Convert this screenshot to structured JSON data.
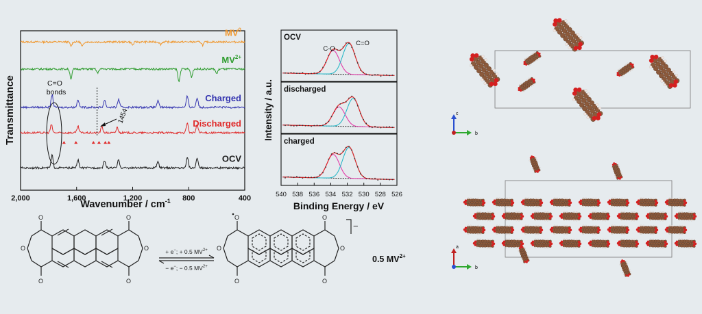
{
  "chart_data": [
    {
      "type": "line",
      "panel": "ftir",
      "ylabel": "Transmittance",
      "xlabel": "Wavenumber / cm",
      "xlabel_sup": "-1",
      "xlim": [
        2000,
        400
      ],
      "x_reversed": true,
      "xticks": [
        2000,
        1600,
        1200,
        800,
        400
      ],
      "xtick_labels": [
        "2,000",
        "1,600",
        "1,200",
        "800",
        "400"
      ],
      "series": [
        {
          "name": "MV",
          "sup": "0",
          "color": "#f0962b",
          "offset": 0.93,
          "features": [
            [
              1640,
              -0.025
            ],
            [
              1560,
              -0.03
            ],
            [
              1200,
              -0.02
            ],
            [
              1000,
              -0.015
            ],
            [
              700,
              -0.02
            ]
          ]
        },
        {
          "name": "MV",
          "sup": "2+",
          "color": "#2e9c2e",
          "offset": 0.76,
          "features": [
            [
              1640,
              -0.06
            ],
            [
              1450,
              -0.025
            ],
            [
              870,
              -0.08
            ],
            [
              780,
              -0.05
            ],
            [
              600,
              -0.03
            ]
          ]
        },
        {
          "name": "Charged",
          "color": "#3535b0",
          "offset": 0.52,
          "features": [
            [
              1775,
              0.08
            ],
            [
              1590,
              0.05
            ],
            [
              1400,
              0.045
            ],
            [
              1300,
              0.05
            ],
            [
              1020,
              0.04
            ],
            [
              810,
              0.07
            ],
            [
              740,
              0.06
            ]
          ]
        },
        {
          "name": "Discharged",
          "color": "#e02a2a",
          "offset": 0.36,
          "features": [
            [
              1780,
              0.05
            ],
            [
              1590,
              0.04
            ],
            [
              1420,
              0.04
            ],
            [
              1310,
              0.035
            ],
            [
              810,
              0.06
            ],
            [
              740,
              0.05
            ]
          ]
        },
        {
          "name": "OCV",
          "color": "#1a1a1a",
          "offset": 0.14,
          "features": [
            [
              1775,
              0.08
            ],
            [
              1590,
              0.05
            ],
            [
              1400,
              0.045
            ],
            [
              1300,
              0.05
            ],
            [
              1020,
              0.04
            ],
            [
              810,
              0.07
            ],
            [
              740,
              0.06
            ]
          ]
        }
      ],
      "annotations": {
        "bonds_label_1": "C=O",
        "bonds_label_2": "bonds",
        "peak_label": "1454",
        "peak_position": 1454,
        "triangle_positions": [
          1690,
          1605,
          1480,
          1440,
          1395,
          1370
        ]
      }
    },
    {
      "type": "line",
      "panel": "xps",
      "ylabel": "Intensity / a.u.",
      "xlabel": "Binding Energy / eV",
      "xlim": [
        540,
        526
      ],
      "x_reversed": true,
      "xticks": [
        540,
        538,
        536,
        534,
        532,
        530,
        528,
        526
      ],
      "subpanels": [
        {
          "label": "OCV",
          "labels": [
            "C-O",
            "C=O"
          ],
          "peaks": [
            {
              "name": "C-O",
              "center": 533.7,
              "height": 0.55,
              "color": "#e23ba8"
            },
            {
              "name": "C=O",
              "center": 531.8,
              "height": 0.72,
              "color": "#2ab8c8"
            }
          ]
        },
        {
          "label": "discharged",
          "peaks": [
            {
              "name": "C-O",
              "center": 533.0,
              "height": 0.45,
              "color": "#e23ba8"
            },
            {
              "name": "C=O",
              "center": 531.3,
              "height": 0.65,
              "color": "#2ab8c8"
            }
          ]
        },
        {
          "label": "charged",
          "peaks": [
            {
              "name": "C-O",
              "center": 533.7,
              "height": 0.55,
              "color": "#e23ba8"
            },
            {
              "name": "C=O",
              "center": 531.8,
              "height": 0.72,
              "color": "#2ab8c8"
            }
          ]
        }
      ],
      "envelope_color": "#e02a2a",
      "background_color": "#1a1a1a"
    }
  ],
  "scheme": {
    "arrow_top": "+ e",
    "arrow_top_sup": "−",
    "arrow_top_rest": "; + 0.5 MV",
    "arrow_top_sup2": "2+",
    "arrow_bottom": "− e",
    "arrow_bottom_sup": "−",
    "arrow_bottom_rest": "; − 0.5 MV",
    "arrow_bottom_sup2": "2+",
    "charge": "−",
    "counterion": "0.5 MV",
    "counterion_sup": "2+"
  },
  "crystal": {
    "top_axes": [
      "c",
      "b"
    ],
    "bottom_axes": [
      "a",
      "b"
    ]
  }
}
